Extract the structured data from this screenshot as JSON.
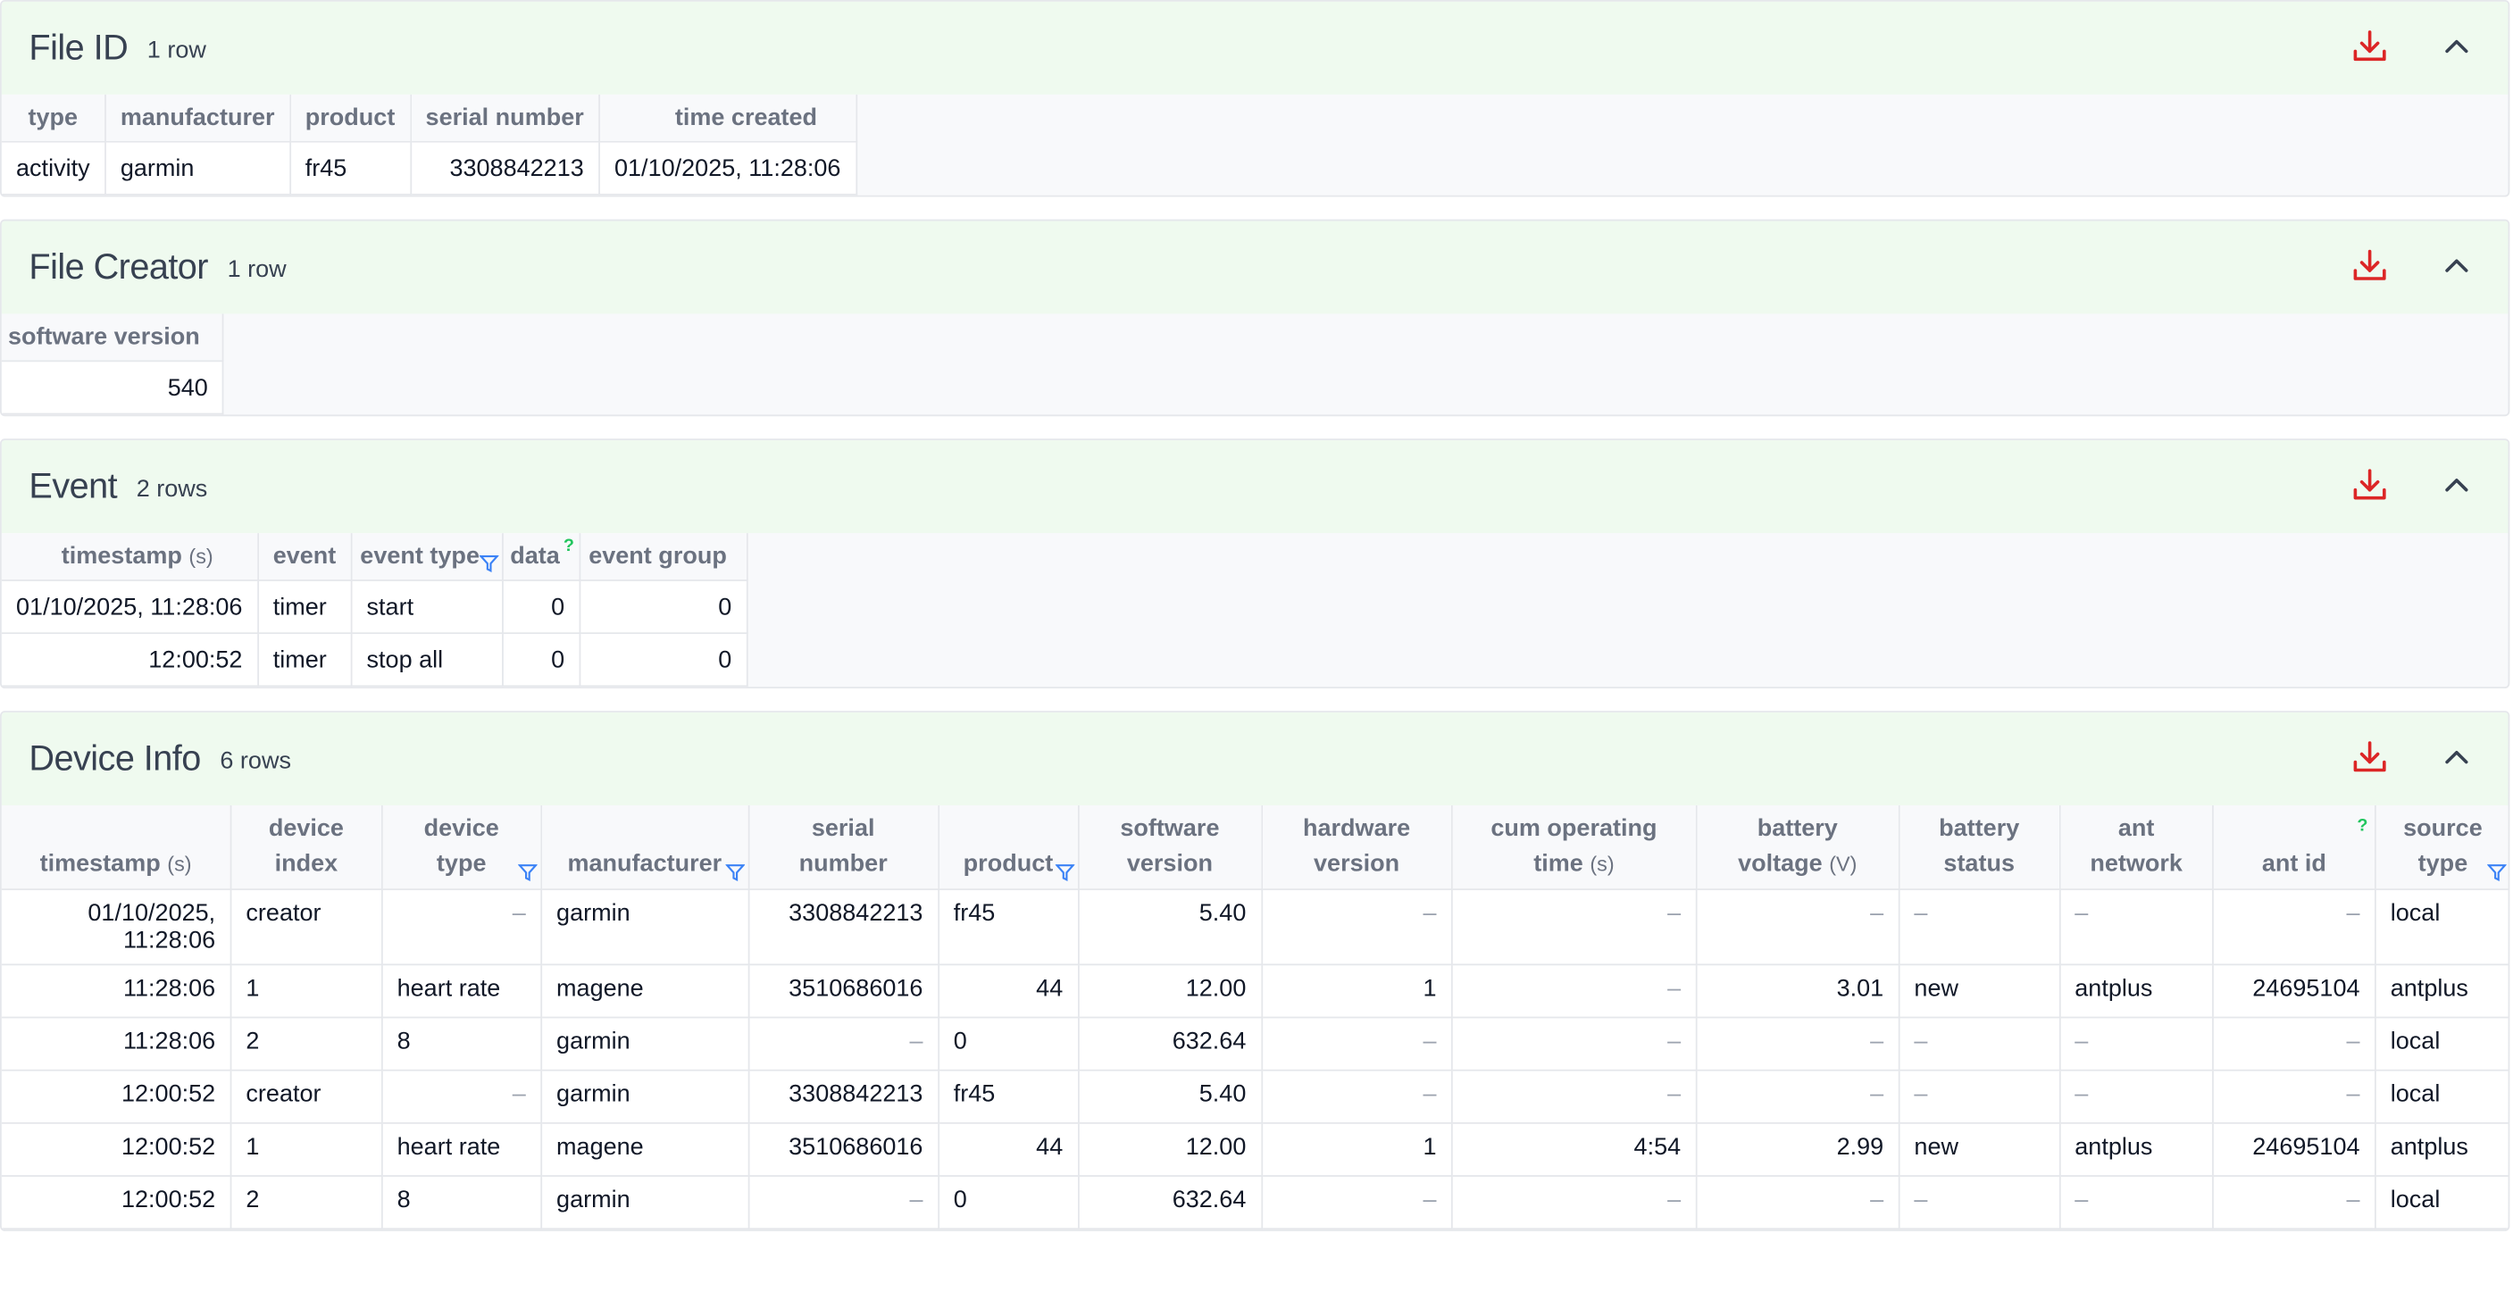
{
  "colors": {
    "accent": "#dc2626",
    "header_bg": "#effaef",
    "muted": "#6b7280",
    "help": "#22c55e",
    "filter": "#3b82f6"
  },
  "icons": {
    "download": "download-icon",
    "collapse": "chevron-up-icon",
    "filter": "filter-icon"
  },
  "file_id": {
    "title": "File ID",
    "count": "1 row",
    "columns": [
      "type",
      "manufacturer",
      "product",
      "serial number",
      "time created"
    ],
    "rows": [
      [
        "activity",
        "garmin",
        "fr45",
        "3308842213",
        "01/10/2025, 11:28:06"
      ]
    ]
  },
  "file_creator": {
    "title": "File Creator",
    "count": "1 row",
    "columns": [
      "software version"
    ],
    "rows": [
      [
        "540"
      ]
    ]
  },
  "event": {
    "title": "Event",
    "count": "2 rows",
    "columns": [
      "timestamp",
      "event",
      "event type",
      "data",
      "event group"
    ],
    "timestamp_unit": "(s)",
    "help_mark": "?",
    "rows": [
      [
        "01/10/2025, 11:28:06",
        "timer",
        "start",
        "0",
        "0"
      ],
      [
        "12:00:52",
        "timer",
        "stop all",
        "0",
        "0"
      ]
    ]
  },
  "device_info": {
    "title": "Device Info",
    "count": "6 rows",
    "help_mark": "?",
    "columns": [
      {
        "line1": "timestamp",
        "unit": "(s)"
      },
      {
        "line1": "device",
        "line2": "index"
      },
      {
        "line1": "device",
        "line2": "type"
      },
      {
        "line1": "manufacturer"
      },
      {
        "line1": "serial",
        "line2": "number"
      },
      {
        "line1": "product"
      },
      {
        "line1": "software",
        "line2": "version"
      },
      {
        "line1": "hardware",
        "line2": "version"
      },
      {
        "line1": "cum operating",
        "line2": "time",
        "unit": "(s)"
      },
      {
        "line1": "battery",
        "line2": "voltage",
        "unit": "(V)"
      },
      {
        "line1": "battery",
        "line2": "status"
      },
      {
        "line1": "ant",
        "line2": "network"
      },
      {
        "line1": "ant id"
      },
      {
        "line1": "source",
        "line2": "type"
      }
    ],
    "rows": [
      [
        "01/10/2025,",
        "creator",
        "–",
        "garmin",
        "3308842213",
        "fr45",
        "5.40",
        "–",
        "–",
        "–",
        "–",
        "–",
        "–",
        "local"
      ],
      [
        "11:28:06",
        "1",
        "heart rate",
        "magene",
        "3510686016",
        "44",
        "12.00",
        "1",
        "–",
        "3.01",
        "new",
        "antplus",
        "24695104",
        "antplus"
      ],
      [
        "11:28:06",
        "2",
        "8",
        "garmin",
        "–",
        "0",
        "632.64",
        "–",
        "–",
        "–",
        "–",
        "–",
        "–",
        "local"
      ],
      [
        "12:00:52",
        "creator",
        "–",
        "garmin",
        "3308842213",
        "fr45",
        "5.40",
        "–",
        "–",
        "–",
        "–",
        "–",
        "–",
        "local"
      ],
      [
        "12:00:52",
        "1",
        "heart rate",
        "magene",
        "3510686016",
        "44",
        "12.00",
        "1",
        "4:54",
        "2.99",
        "new",
        "antplus",
        "24695104",
        "antplus"
      ],
      [
        "12:00:52",
        "2",
        "8",
        "garmin",
        "–",
        "0",
        "632.64",
        "–",
        "–",
        "–",
        "–",
        "–",
        "–",
        "local"
      ]
    ],
    "first_row_second_line": "11:28:06"
  }
}
